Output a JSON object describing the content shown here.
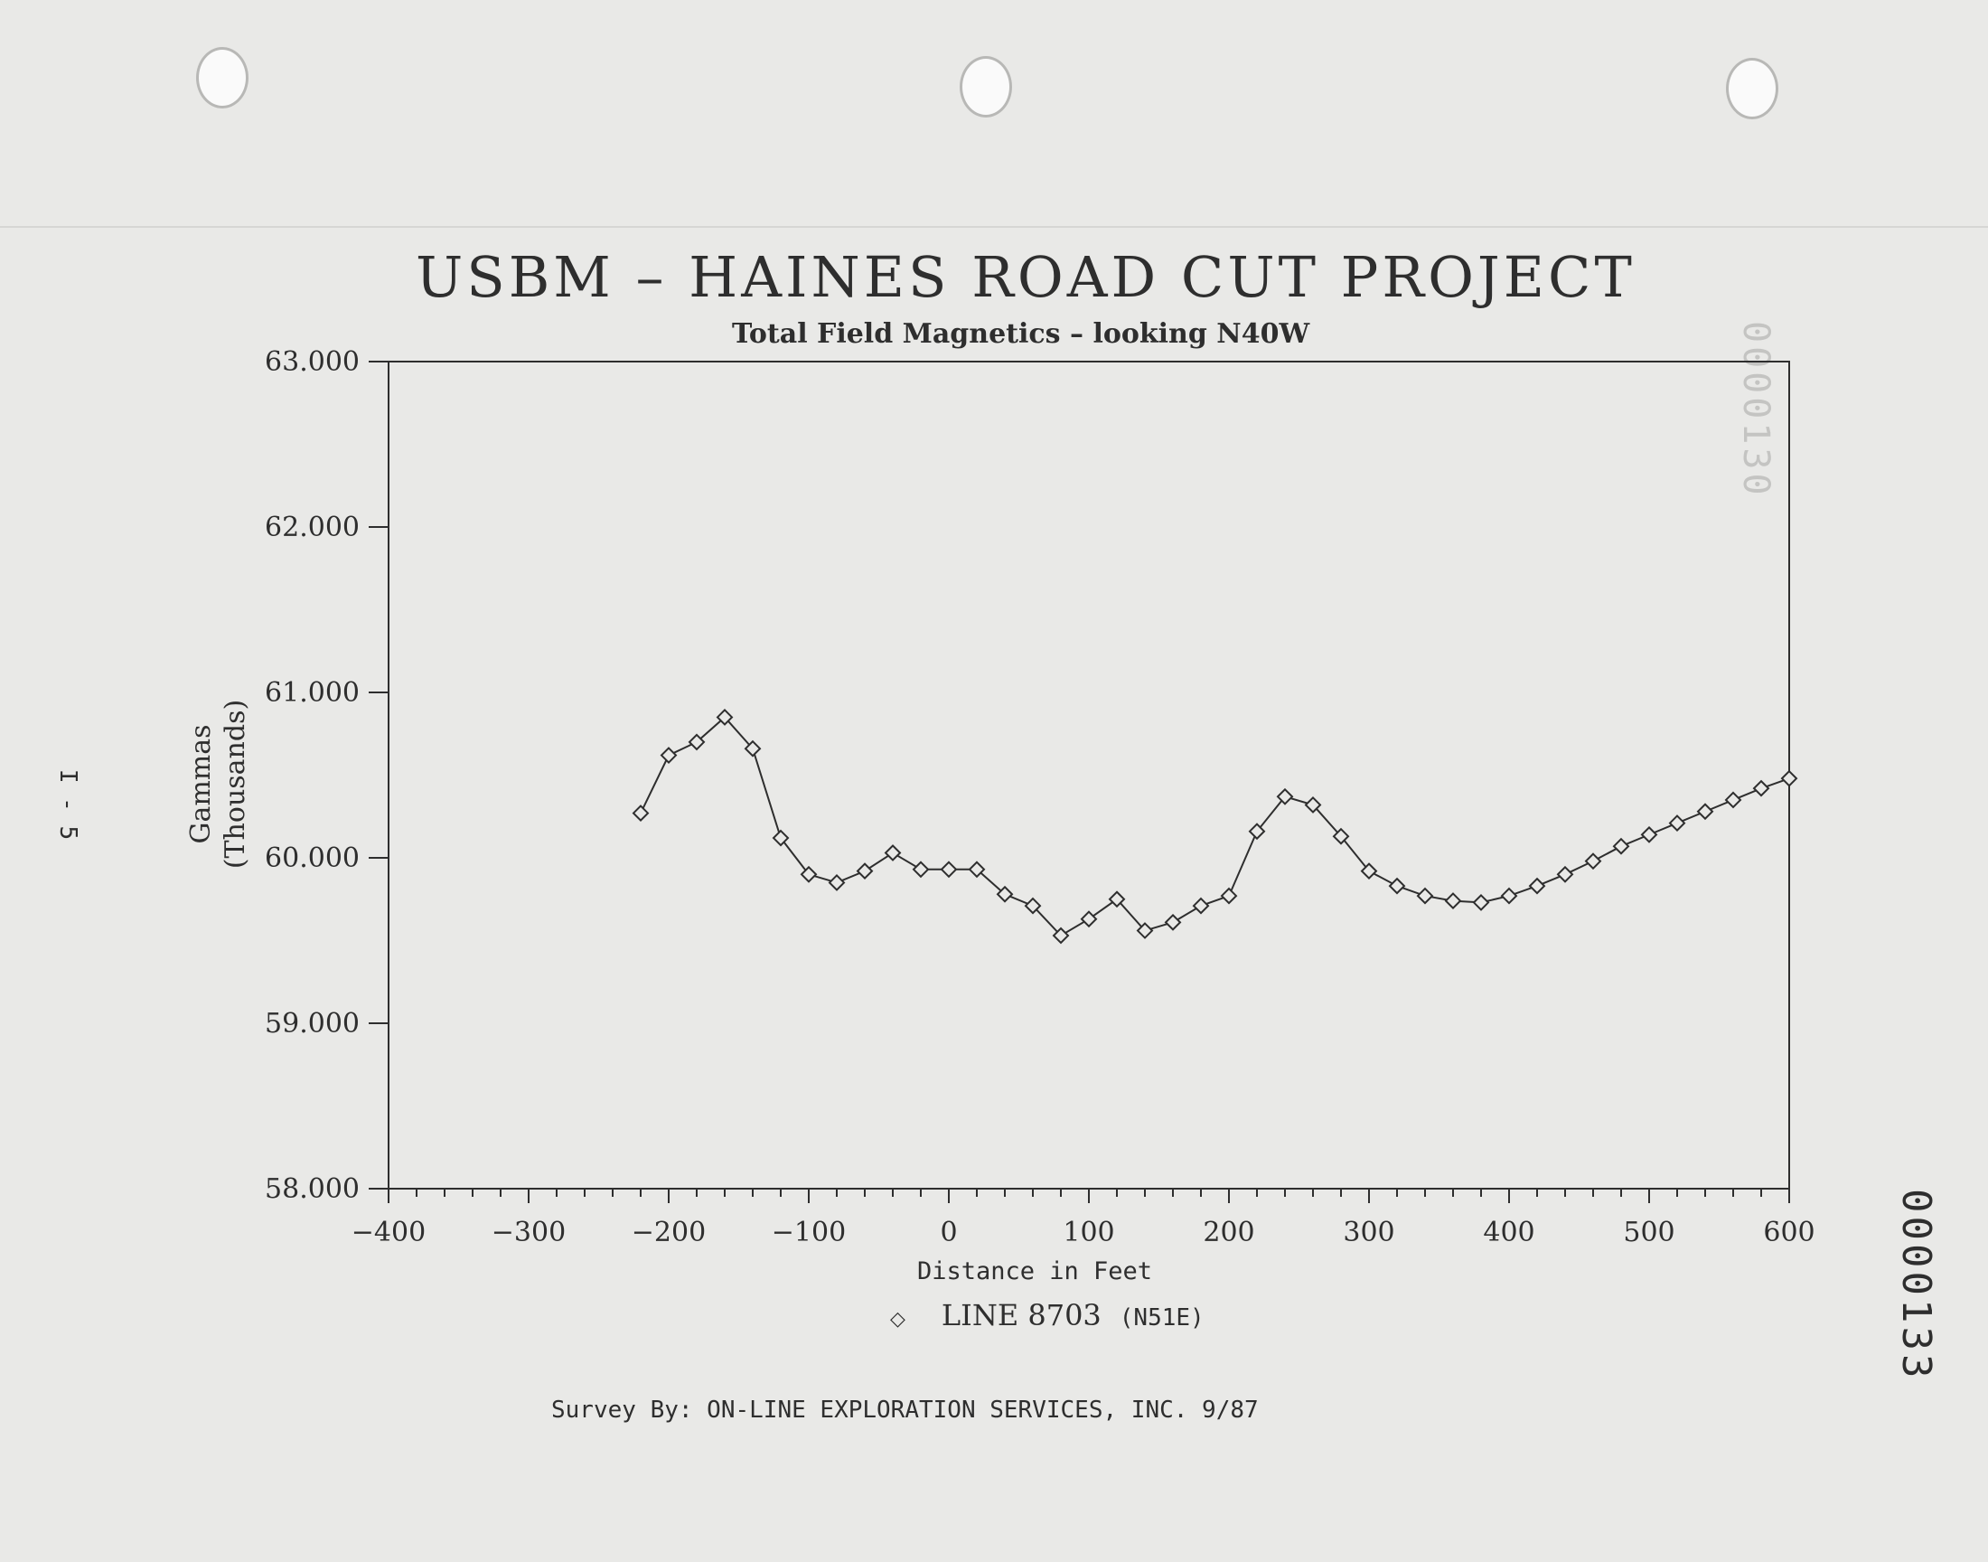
{
  "document": {
    "page_label": "I - 5",
    "document_number": "0000133",
    "bleed_through_number": "0000130",
    "survey_credit": "Survey By:  ON-LINE EXPLORATION SERVICES, INC.  9/87"
  },
  "chart_data": {
    "type": "line",
    "title": "USBM – HAINES ROAD CUT PROJECT",
    "subtitle": "Total Field Magnetics – looking N40W",
    "xlabel": "Distance in Feet",
    "ylabel_line1": "Gammas",
    "ylabel_line2": "(Thousands)",
    "xlim": [
      -400,
      600
    ],
    "ylim": [
      58,
      63
    ],
    "x_ticks": [
      -400,
      -300,
      -200,
      -100,
      0,
      100,
      200,
      300,
      400,
      500,
      600
    ],
    "x_tick_labels": [
      "-400",
      "-300",
      "-200",
      "-100",
      "0",
      "100",
      "200",
      "300",
      "400",
      "500",
      "600"
    ],
    "y_ticks": [
      58,
      59,
      60,
      61,
      62,
      63
    ],
    "y_tick_labels": [
      "58.000",
      "59.000",
      "60.000",
      "61.000",
      "62.000",
      "63.000"
    ],
    "legend_position": "bottom-center",
    "grid": false,
    "marker": "diamond",
    "line_color": "#2e2e2e",
    "series": [
      {
        "name": "LINE 8703",
        "legend_suffix": "(N51E)",
        "x": [
          -220,
          -200,
          -180,
          -160,
          -140,
          -120,
          -100,
          -80,
          -60,
          -40,
          -20,
          0,
          20,
          40,
          60,
          80,
          100,
          120,
          140,
          160,
          180,
          200,
          220,
          240,
          260,
          280,
          300,
          320,
          340,
          360,
          380,
          400,
          420,
          440,
          460,
          480,
          500,
          520,
          540,
          560,
          580,
          600
        ],
        "y": [
          60.27,
          60.62,
          60.7,
          60.85,
          60.66,
          60.12,
          59.9,
          59.85,
          59.92,
          60.03,
          59.93,
          59.93,
          59.93,
          59.78,
          59.71,
          59.53,
          59.63,
          59.75,
          59.56,
          59.61,
          59.71,
          59.77,
          60.16,
          60.37,
          60.32,
          60.13,
          59.92,
          59.83,
          59.77,
          59.74,
          59.73,
          59.77,
          59.83,
          59.9,
          59.98,
          60.07,
          60.14,
          60.21,
          60.28,
          60.35,
          60.42,
          60.48
        ]
      }
    ]
  }
}
